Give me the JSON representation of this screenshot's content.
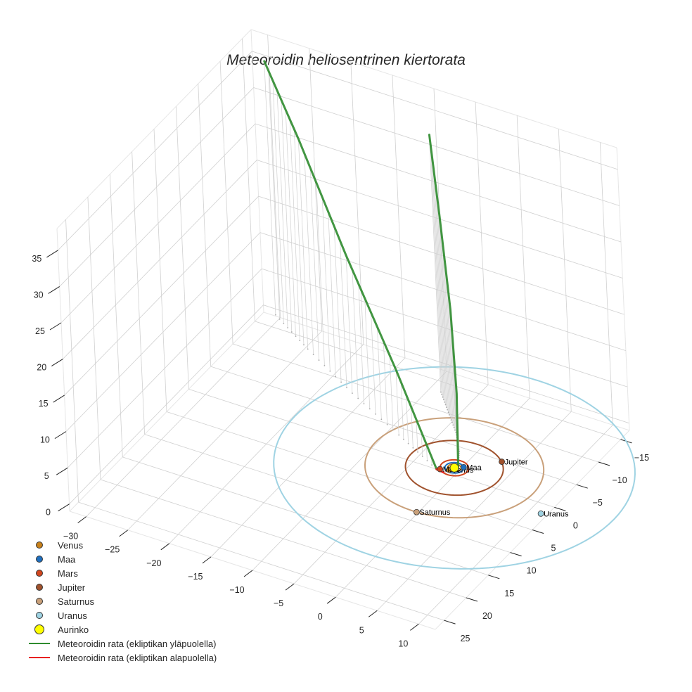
{
  "title": "Meteoroidin heliosentrinen kiertorata",
  "legend": [
    {
      "label": "Venus",
      "type": "dot",
      "color": "#c8811b",
      "size": 8
    },
    {
      "label": "Maa",
      "type": "dot",
      "color": "#1f6fbf",
      "size": 8
    },
    {
      "label": "Mars",
      "type": "dot",
      "color": "#d2461e",
      "size": 8
    },
    {
      "label": "Jupiter",
      "type": "dot",
      "color": "#a0522d",
      "size": 8
    },
    {
      "label": "Saturnus",
      "type": "dot",
      "color": "#c9a07a",
      "size": 8
    },
    {
      "label": "Uranus",
      "type": "dot",
      "color": "#9fd3e3",
      "size": 8
    },
    {
      "label": "Aurinko",
      "type": "dot",
      "color": "#ffff00",
      "size": 12
    },
    {
      "label": "Meteoroidin rata (ekliptikan yläpuolella)",
      "type": "line",
      "color": "#2e8b2e"
    },
    {
      "label": "Meteoroidin rata (ekliptikan alapuolella)",
      "type": "line",
      "color": "#e82020"
    }
  ],
  "chart_data": {
    "type": "scatter3d",
    "title": "Meteoroidin heliosentrinen kiertorata",
    "xlabel": "",
    "ylabel": "",
    "zlabel": "",
    "x_ticks": [
      -30,
      -25,
      -20,
      -15,
      -10,
      -5,
      0,
      5,
      10
    ],
    "y_ticks": [
      -15,
      -10,
      -5,
      0,
      5,
      10,
      15,
      20,
      25
    ],
    "z_ticks": [
      0,
      5,
      10,
      15,
      20,
      25,
      30,
      35
    ],
    "xlim": [
      -32,
      12
    ],
    "ylim": [
      -17,
      27
    ],
    "zlim": [
      -1,
      38
    ],
    "planets": [
      {
        "name": "Venus",
        "orbit_au": 0.72,
        "x": -0.3,
        "y": 0.6,
        "z": 0,
        "color": "#c8811b"
      },
      {
        "name": "Maa",
        "orbit_au": 1.0,
        "x": 0.8,
        "y": -0.6,
        "z": 0,
        "color": "#1f6fbf"
      },
      {
        "name": "Mars",
        "orbit_au": 1.52,
        "x": -1.2,
        "y": 1.0,
        "z": 0,
        "color": "#d2461e"
      },
      {
        "name": "Jupiter",
        "orbit_au": 5.2,
        "x": 3.8,
        "y": -3.6,
        "z": 0,
        "color": "#a0522d"
      },
      {
        "name": "Saturnus",
        "orbit_au": 9.5,
        "x": 0.5,
        "y": 9.5,
        "z": 0,
        "color": "#c9a07a"
      },
      {
        "name": "Uranus",
        "orbit_au": 19.2,
        "x": 12.0,
        "y": 3.0,
        "z": 0,
        "color": "#9fd3e3"
      },
      {
        "name": "Aurinko",
        "x": 0,
        "y": 0,
        "z": 0,
        "color": "#ffff00"
      }
    ],
    "series": [
      {
        "name": "Meteoroidin rata (ekliptikan yläpuolella) - haara 1",
        "color": "#2e8b2e",
        "points": [
          [
            -1.5,
            1.2,
            0
          ],
          [
            -8,
            -2.5,
            9
          ],
          [
            -16,
            -7,
            19
          ],
          [
            -24,
            -12,
            29
          ],
          [
            -30,
            -16,
            35
          ]
        ]
      },
      {
        "name": "Meteoroidin rata (ekliptikan yläpuolella) - haara 2",
        "color": "#2e8b2e",
        "points": [
          [
            0.3,
            -0.3,
            0
          ],
          [
            -1,
            -3,
            8
          ],
          [
            -3,
            -6,
            17
          ],
          [
            -5.5,
            -9,
            27
          ],
          [
            -8,
            -12,
            35.5
          ]
        ]
      },
      {
        "name": "Meteoroidin rata (ekliptikan alapuolella)",
        "color": "#e82020",
        "points": [
          [
            -1.5,
            1.2,
            0
          ],
          [
            -0.8,
            1.0,
            -0.3
          ]
        ]
      }
    ]
  }
}
